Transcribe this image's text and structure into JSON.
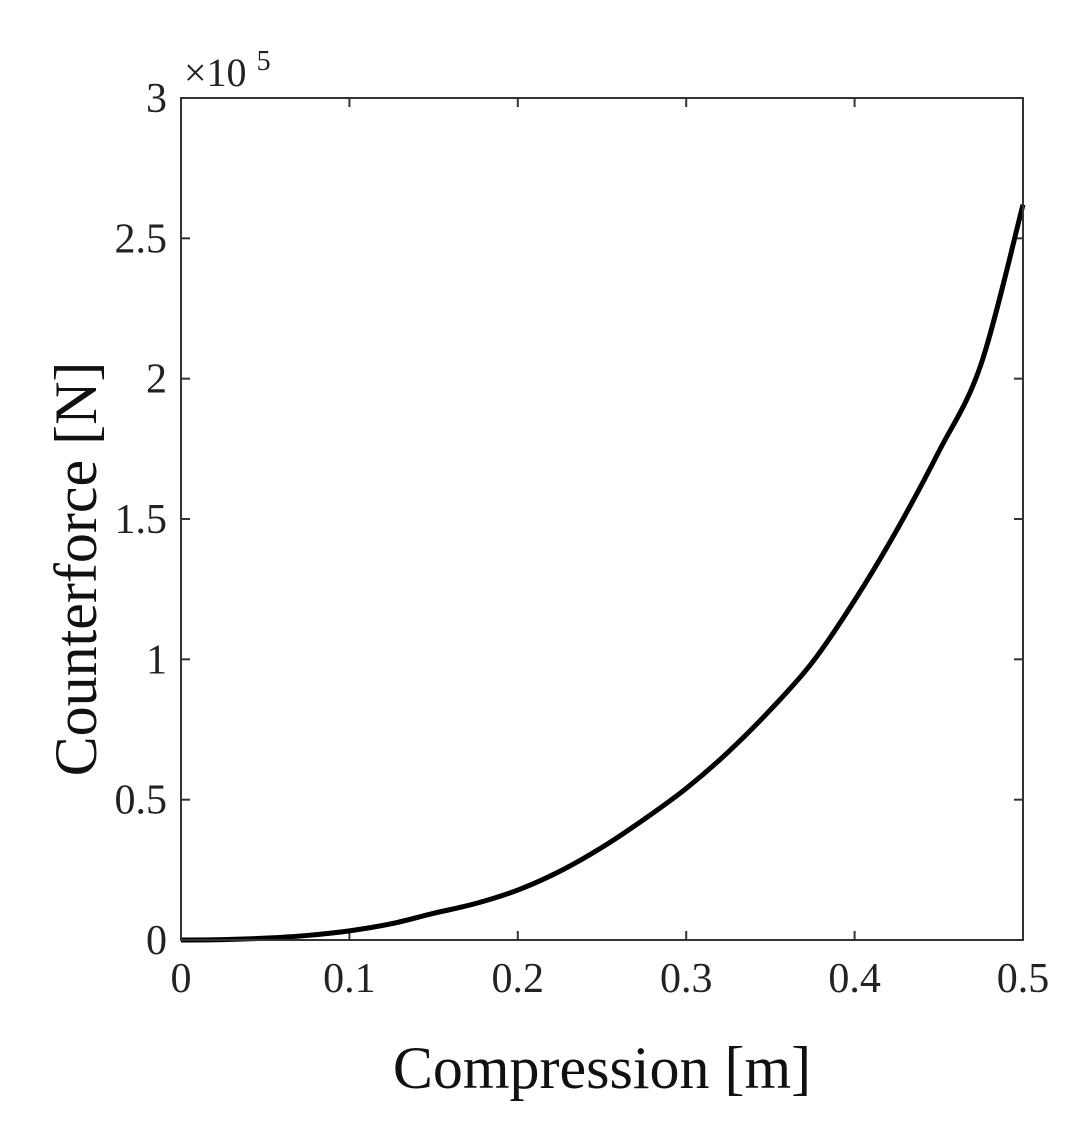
{
  "chart_data": {
    "type": "line",
    "title": "",
    "xlabel": "Compression [m]",
    "ylabel": "Counterforce [N]",
    "y_multiplier_label": {
      "base": "×10",
      "exponent": "5"
    },
    "xlim": [
      0,
      0.5
    ],
    "ylim": [
      0,
      3
    ],
    "x_ticks": [
      0,
      0.1,
      0.2,
      0.3,
      0.4,
      0.5
    ],
    "x_tick_labels": [
      "0",
      "0.1",
      "0.2",
      "0.3",
      "0.4",
      "0.5"
    ],
    "y_ticks": [
      0,
      0.5,
      1,
      1.5,
      2,
      2.5,
      3
    ],
    "y_tick_labels": [
      "0",
      "0.5",
      "1",
      "1.5",
      "2",
      "2.5",
      "3"
    ],
    "grid": false,
    "box": true,
    "series": [
      {
        "color": "#000000",
        "x": [
          0,
          0.025,
          0.05,
          0.075,
          0.1,
          0.125,
          0.15,
          0.175,
          0.2,
          0.225,
          0.25,
          0.275,
          0.3,
          0.325,
          0.35,
          0.375,
          0.4,
          0.425,
          0.45,
          0.475,
          0.5
        ],
        "y": [
          0,
          0.0013,
          0.0065,
          0.0163,
          0.0326,
          0.058,
          0.095,
          0.13,
          0.178,
          0.245,
          0.33,
          0.43,
          0.54,
          0.67,
          0.82,
          0.99,
          1.21,
          1.46,
          1.74,
          2.05,
          2.62
        ]
      }
    ]
  }
}
